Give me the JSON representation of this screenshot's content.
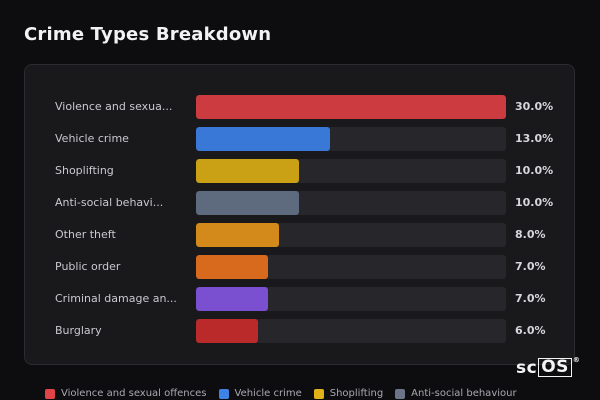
{
  "header": {
    "title": "Crime Types Breakdown"
  },
  "chart_data": {
    "type": "bar",
    "orientation": "horizontal",
    "title": "Crime Types Breakdown",
    "categories": [
      "Violence and sexua...",
      "Vehicle crime",
      "Shoplifting",
      "Anti-social behavi...",
      "Other theft",
      "Public order",
      "Criminal damage an...",
      "Burglary"
    ],
    "values": [
      30.0,
      13.0,
      10.0,
      10.0,
      8.0,
      7.0,
      7.0,
      6.0
    ],
    "value_labels": [
      "30.0%",
      "13.0%",
      "10.0%",
      "10.0%",
      "8.0%",
      "7.0%",
      "7.0%",
      "6.0%"
    ],
    "colors": [
      "#cc3b3f",
      "#3a78d8",
      "#caa015",
      "#5e6b7e",
      "#d48a1a",
      "#d86a1e",
      "#7a4fd0",
      "#bb2a2a"
    ],
    "xlim": [
      0,
      30
    ],
    "grid": false,
    "legend": {
      "placement": "bottom",
      "entries": [
        {
          "label": "Violence and sexual offences",
          "color": "#e04449"
        },
        {
          "label": "Vehicle crime",
          "color": "#3f82e6"
        },
        {
          "label": "Shoplifting",
          "color": "#e0b21a"
        },
        {
          "label": "Anti-social behaviour",
          "color": "#6b7587"
        }
      ]
    }
  },
  "watermark": {
    "prefix": "sc",
    "boxed": "OS",
    "mark": "®"
  }
}
